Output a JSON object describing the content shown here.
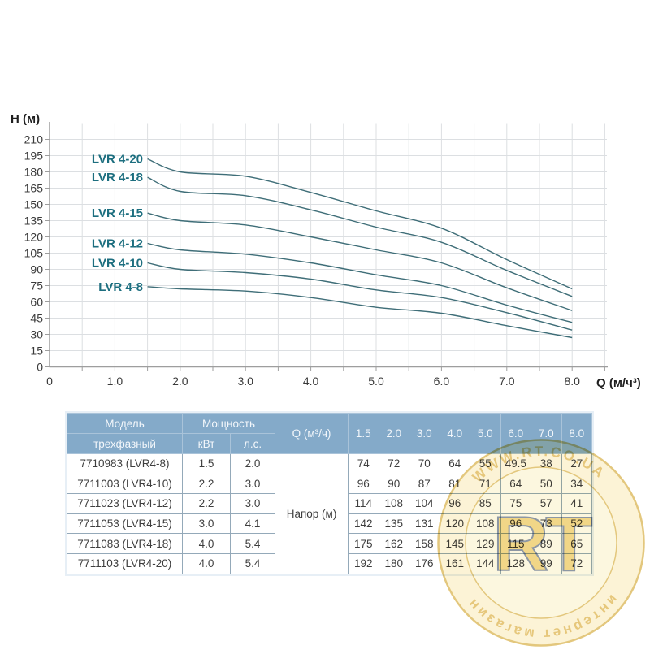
{
  "chart_data": {
    "type": "line",
    "title": "",
    "xlabel": "Q (м/ч³)",
    "ylabel": "H (м)",
    "x": [
      1.5,
      2.0,
      3.0,
      4.0,
      5.0,
      6.0,
      7.0,
      8.0
    ],
    "series": [
      {
        "name": "LVR 4-20",
        "values": [
          192,
          180,
          176,
          161,
          144,
          128,
          99,
          72
        ]
      },
      {
        "name": "LVR 4-18",
        "values": [
          175,
          162,
          158,
          145,
          129,
          115,
          89,
          65
        ]
      },
      {
        "name": "LVR 4-15",
        "values": [
          142,
          135,
          131,
          120,
          108,
          96,
          73,
          52
        ]
      },
      {
        "name": "LVR 4-12",
        "values": [
          114,
          108,
          104,
          96,
          85,
          75,
          57,
          41
        ]
      },
      {
        "name": "LVR 4-10",
        "values": [
          96,
          90,
          87,
          81,
          71,
          64,
          50,
          34
        ]
      },
      {
        "name": "LVR 4-8",
        "values": [
          74,
          72,
          70,
          64,
          55,
          49.5,
          38,
          27
        ]
      }
    ],
    "xlim": [
      0,
      8.55
    ],
    "ylim": [
      0,
      225
    ],
    "x_tick_labels": [
      "0",
      "1.0",
      "2.0",
      "3.0",
      "4.0",
      "5.0",
      "6.0",
      "7.0",
      "8.0"
    ],
    "y_tick_labels": [
      "0",
      "15",
      "30",
      "45",
      "60",
      "75",
      "90",
      "105",
      "120",
      "135",
      "150",
      "165",
      "180",
      "195",
      "210"
    ],
    "x_grid_step": 0.5,
    "y_grid_step": 15,
    "grid": true,
    "legend_position": "inline-left-of-curves",
    "colors": {
      "curve": "#3f6e78",
      "series_label": "#1c6e7f",
      "grid": "#dcdfe2",
      "axis": "#9e9e9e",
      "tick_text": "#3a3a3a",
      "axis_title_text": "#1f1f1f"
    }
  },
  "table": {
    "header": {
      "model": "Модель",
      "model_sub": "трехфазный",
      "power": "Мощность",
      "kw": "кВт",
      "hp": "л.с.",
      "q": "Q (м³/ч)",
      "q_values": [
        "1.5",
        "2.0",
        "3.0",
        "4.0",
        "5.0",
        "6.0",
        "7.0",
        "8.0"
      ]
    },
    "napor_label": "Напор (м)",
    "rows": [
      {
        "model": "7710983 (LVR4-8)",
        "kw": "1.5",
        "hp": "2.0",
        "values": [
          "74",
          "72",
          "70",
          "64",
          "55",
          "49.5",
          "38",
          "27"
        ]
      },
      {
        "model": "7711003 (LVR4-10)",
        "kw": "2.2",
        "hp": "3.0",
        "values": [
          "96",
          "90",
          "87",
          "81",
          "71",
          "64",
          "50",
          "34"
        ]
      },
      {
        "model": "7711023 (LVR4-12)",
        "kw": "2.2",
        "hp": "3.0",
        "values": [
          "114",
          "108",
          "104",
          "96",
          "85",
          "75",
          "57",
          "41"
        ]
      },
      {
        "model": "7711053 (LVR4-15)",
        "kw": "3.0",
        "hp": "4.1",
        "values": [
          "142",
          "135",
          "131",
          "120",
          "108",
          "96",
          "73",
          "52"
        ]
      },
      {
        "model": "7711083 (LVR4-18)",
        "kw": "4.0",
        "hp": "5.4",
        "values": [
          "175",
          "162",
          "158",
          "145",
          "129",
          "115",
          "89",
          "65"
        ]
      },
      {
        "model": "7711103 (LVR4-20)",
        "kw": "4.0",
        "hp": "5.4",
        "values": [
          "192",
          "180",
          "176",
          "161",
          "144",
          "128",
          "99",
          "72"
        ]
      }
    ],
    "colors": {
      "header_bg": "#84aac9",
      "header_text": "#f3f7fb",
      "body_text": "#3e3e3e",
      "border": "#94a9b9"
    }
  },
  "watermark": {
    "top_text": "WWW.RT.CO.UA",
    "center_text": "RT",
    "bottom_text": "интернет магазин",
    "color": "#d7a52a",
    "letters_fill": "#e8bd3c",
    "letters_outline": "#47566b"
  }
}
